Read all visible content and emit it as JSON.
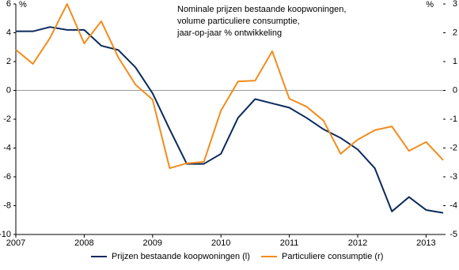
{
  "chart_data": {
    "type": "line",
    "title": [
      "Nominale prijzen bestaande koopwoningen,",
      "volume particuliere consumptie,",
      "jaar-op-jaar % ontwikkeling"
    ],
    "ylabel": "%",
    "y2label": "%",
    "x": [
      2007,
      2007.25,
      2007.5,
      2007.75,
      2008,
      2008.25,
      2008.5,
      2008.75,
      2009,
      2009.25,
      2009.5,
      2009.75,
      2010,
      2010.25,
      2010.5,
      2010.75,
      2011,
      2011.25,
      2011.5,
      2011.75,
      2012,
      2012.25,
      2012.5,
      2012.75,
      2013,
      2013.25
    ],
    "series": [
      {
        "name": "Prijzen bestaande koopwoningen (l)",
        "color": "#0b2a5b",
        "axis": "y",
        "values": [
          4.1,
          4.1,
          4.4,
          4.2,
          4.2,
          3.1,
          2.8,
          1.6,
          -0.2,
          -2.7,
          -5.1,
          -5.1,
          -4.4,
          -1.9,
          -0.6,
          -0.9,
          -1.2,
          -1.9,
          -2.7,
          -3.3,
          -4.1,
          -5.4,
          -8.4,
          -7.4,
          -8.3,
          -8.5
        ]
      },
      {
        "name": "Particuliere consumptie (r)",
        "color": "#f28c1e",
        "axis": "y2",
        "values": [
          1.41,
          0.92,
          1.82,
          3.0,
          1.63,
          2.4,
          1.14,
          0.2,
          -0.32,
          -2.7,
          -2.53,
          -2.48,
          -0.7,
          0.31,
          0.34,
          1.36,
          -0.29,
          -0.56,
          -1.05,
          -2.2,
          -1.71,
          -1.38,
          -1.25,
          -2.1,
          -1.79,
          -2.42
        ]
      }
    ],
    "xlim": [
      2007,
      2013.25
    ],
    "xticks": [
      2007,
      2008,
      2009,
      2010,
      2011,
      2012,
      2013
    ],
    "ylim": [
      -10,
      6
    ],
    "yticks": [
      -10,
      -8,
      -6,
      -4,
      -2,
      0,
      2,
      4,
      6
    ],
    "y2lim": [
      -5,
      3
    ],
    "y2ticks": [
      -5,
      -4,
      -3,
      -2,
      -1,
      0,
      1,
      2,
      3
    ]
  }
}
